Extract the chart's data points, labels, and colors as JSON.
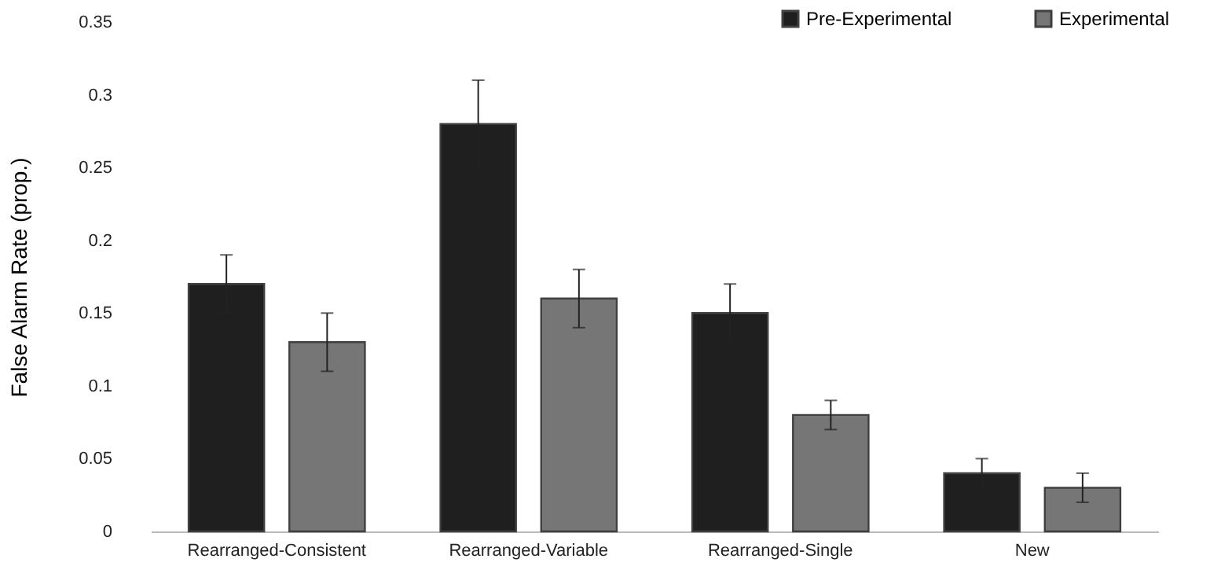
{
  "chart_data": {
    "type": "bar",
    "ylabel": "False Alarm Rate (prop.)",
    "categories": [
      "Rearranged-Consistent",
      "Rearranged-Variable",
      "Rearranged-Single",
      "New"
    ],
    "series": [
      {
        "name": "Pre-Experimental",
        "color": "#1f1f1f",
        "values": [
          0.17,
          0.28,
          0.15,
          0.04
        ],
        "errors": [
          0.02,
          0.03,
          0.02,
          0.01
        ]
      },
      {
        "name": "Experimental",
        "color": "#767676",
        "values": [
          0.13,
          0.16,
          0.08,
          0.03
        ],
        "errors": [
          0.02,
          0.02,
          0.01,
          0.01
        ]
      }
    ],
    "ylim": [
      0,
      0.35
    ],
    "yticks": [
      0,
      0.05,
      0.1,
      0.15,
      0.2,
      0.25,
      0.3,
      0.35
    ],
    "grid": false,
    "legend": "top right"
  }
}
